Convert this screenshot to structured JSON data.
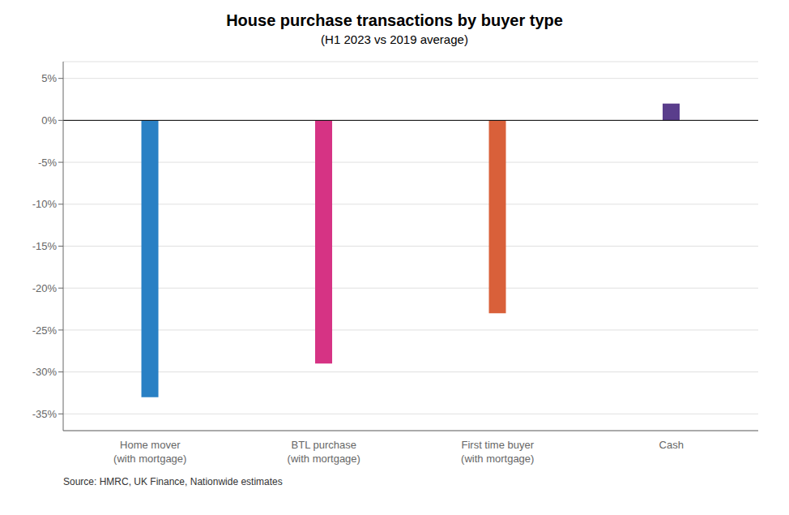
{
  "chart_data": {
    "type": "bar",
    "title": "House purchase transactions by buyer type",
    "subtitle": "(H1 2023 vs 2019 average)",
    "categories": [
      "Home mover\n(with mortgage)",
      "BTL purchase\n(with mortgage)",
      "First time buyer\n(with mortgage)",
      "Cash"
    ],
    "values": [
      -33,
      -29,
      -23,
      2
    ],
    "colors": [
      "#2980c4",
      "#d63384",
      "#d9603a",
      "#5a3e8c"
    ],
    "ylim": [
      -37,
      7
    ],
    "yticks": [
      {
        "value": 5,
        "label": "5%"
      },
      {
        "value": 0,
        "label": "0%"
      },
      {
        "value": -5,
        "label": "-5%"
      },
      {
        "value": -10,
        "label": "-10%"
      },
      {
        "value": -15,
        "label": "-15%"
      },
      {
        "value": -20,
        "label": "-20%"
      },
      {
        "value": -25,
        "label": "-25%"
      },
      {
        "value": -30,
        "label": "-30%"
      },
      {
        "value": -35,
        "label": "-35%"
      }
    ],
    "grid": true,
    "annotations": [
      "Source: HMRC, UK Finance, Nationwide estimates"
    ]
  }
}
